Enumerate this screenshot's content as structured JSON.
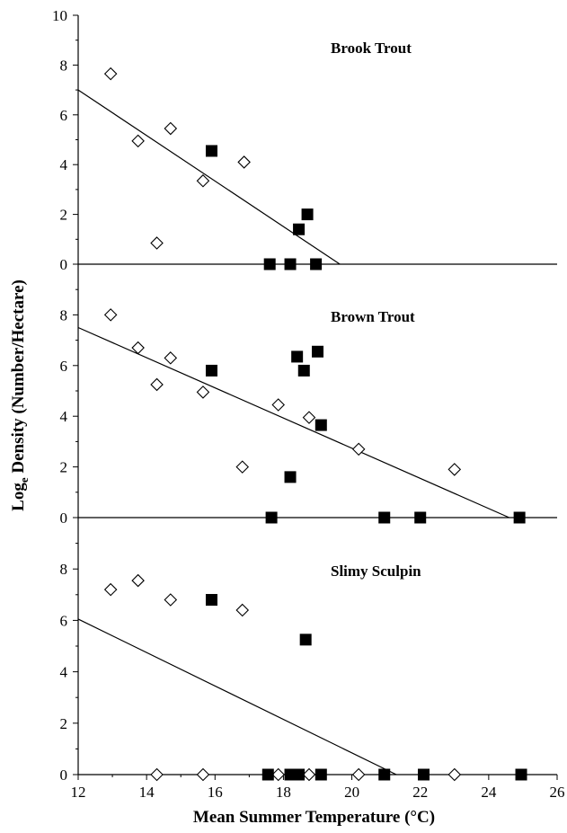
{
  "chart_data": {
    "type": "scatter",
    "xlabel": "Mean Summer Temperature (°C)",
    "ylabel": {
      "prefix": "Log",
      "subscript": "e",
      "suffix": " Density (Number/Hectare)"
    },
    "xlim": [
      12,
      26
    ],
    "x_ticks": [
      "12",
      "14",
      "16",
      "18",
      "20",
      "22",
      "24",
      "26"
    ],
    "grid": false,
    "legend": "none",
    "marker_styles": {
      "open_diamond": {
        "stroke": "#000000",
        "fill": "#ffffff"
      },
      "filled_square": {
        "stroke": "#000000",
        "fill": "#000000"
      }
    },
    "panels": [
      {
        "title": "Brook Trout",
        "ylim": [
          0,
          10
        ],
        "y_ticks": [
          "0",
          "2",
          "4",
          "6",
          "8",
          "10"
        ],
        "open_diamond": [
          [
            12.95,
            7.65
          ],
          [
            13.75,
            4.95
          ],
          [
            14.3,
            0.85
          ],
          [
            14.7,
            5.45
          ],
          [
            15.65,
            3.35
          ],
          [
            16.85,
            4.1
          ]
        ],
        "filled_square": [
          [
            15.9,
            4.55
          ],
          [
            17.6,
            0.0
          ],
          [
            18.2,
            0.0
          ],
          [
            18.45,
            1.4
          ],
          [
            18.7,
            2.0
          ],
          [
            18.95,
            0.0
          ]
        ],
        "trend_line": [
          [
            12,
            7.0
          ],
          [
            19.65,
            0.0
          ]
        ]
      },
      {
        "title": "Brown Trout",
        "ylim": [
          0,
          10
        ],
        "y_ticks": [
          "0",
          "2",
          "4",
          "6",
          "8"
        ],
        "open_diamond": [
          [
            12.95,
            8.0
          ],
          [
            13.75,
            6.7
          ],
          [
            14.3,
            5.25
          ],
          [
            14.7,
            6.3
          ],
          [
            15.65,
            4.95
          ],
          [
            16.8,
            2.0
          ],
          [
            17.85,
            4.45
          ],
          [
            18.75,
            3.95
          ],
          [
            20.2,
            2.7
          ],
          [
            23.0,
            1.9
          ]
        ],
        "filled_square": [
          [
            15.9,
            5.8
          ],
          [
            17.65,
            0.0
          ],
          [
            18.2,
            1.6
          ],
          [
            18.4,
            6.35
          ],
          [
            18.6,
            5.8
          ],
          [
            19.0,
            6.55
          ],
          [
            19.1,
            3.65
          ],
          [
            20.95,
            0.0
          ],
          [
            22.0,
            0.0
          ],
          [
            24.9,
            0.0
          ]
        ],
        "trend_line": [
          [
            12,
            7.5
          ],
          [
            24.6,
            0.0
          ]
        ]
      },
      {
        "title": "Slimy Sculpin",
        "ylim": [
          0,
          10
        ],
        "y_ticks": [
          "0",
          "2",
          "4",
          "6",
          "8"
        ],
        "open_diamond": [
          [
            12.95,
            7.2
          ],
          [
            13.75,
            7.55
          ],
          [
            14.3,
            0.0
          ],
          [
            14.7,
            6.8
          ],
          [
            15.65,
            0.0
          ],
          [
            16.8,
            6.4
          ],
          [
            17.85,
            0.0
          ],
          [
            18.75,
            0.0
          ],
          [
            20.2,
            0.0
          ],
          [
            23.0,
            0.0
          ]
        ],
        "filled_square": [
          [
            15.9,
            6.8
          ],
          [
            17.55,
            0.0
          ],
          [
            18.2,
            0.0
          ],
          [
            18.45,
            0.0
          ],
          [
            18.65,
            5.25
          ],
          [
            19.1,
            0.0
          ],
          [
            20.95,
            0.0
          ],
          [
            22.1,
            0.0
          ],
          [
            24.95,
            0.0
          ]
        ],
        "trend_line": [
          [
            12,
            6.05
          ],
          [
            21.3,
            0.0
          ]
        ]
      }
    ]
  }
}
